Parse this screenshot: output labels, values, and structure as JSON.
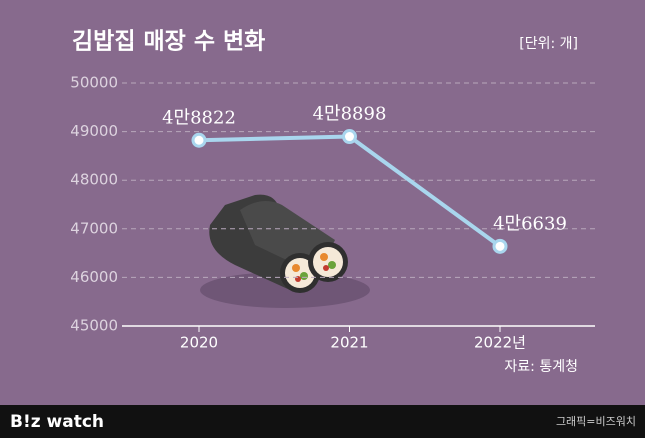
{
  "chart_data": {
    "type": "line",
    "title": "김밥집 매장 수 변화",
    "unit": "[단위: 개]",
    "categories": [
      "2020",
      "2021",
      "2022년"
    ],
    "values": [
      48822,
      48898,
      46639
    ],
    "value_labels": [
      "4만8822",
      "4만8898",
      "4만6639"
    ],
    "color": "#a9d6ee",
    "ylim": [
      45000,
      50000
    ],
    "yticks": [
      45000,
      46000,
      47000,
      48000,
      49000,
      50000
    ],
    "grid": true,
    "source": "자료: 통계청"
  },
  "footer": {
    "logo": "B!z watch",
    "credit": "그래픽=비즈워치"
  }
}
